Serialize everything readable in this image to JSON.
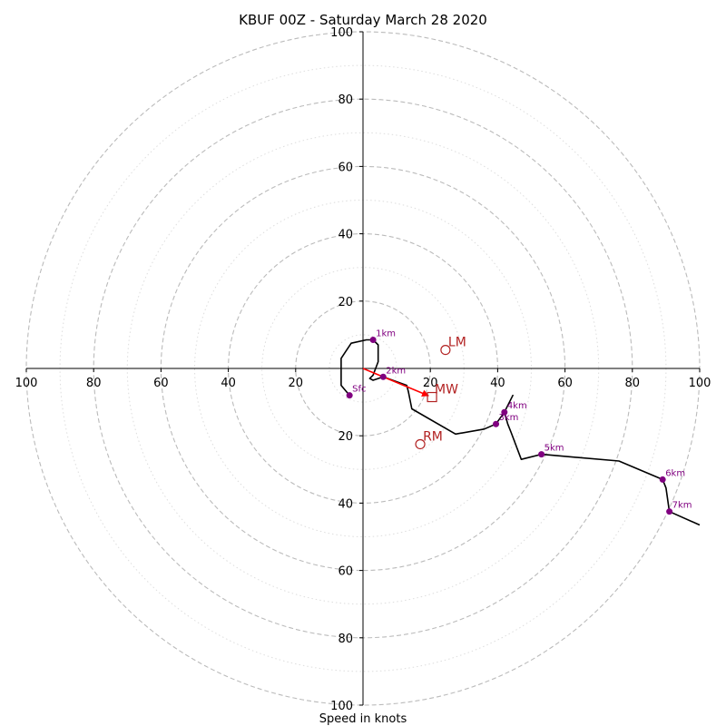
{
  "chart_data": {
    "type": "hodograph",
    "title": "KBUF 00Z - Saturday March 28 2020",
    "xlabel": "Speed in knots",
    "units": "knots",
    "range": [
      -100,
      100
    ],
    "rings_major": [
      20,
      40,
      60,
      80,
      100
    ],
    "rings_minor": [
      10,
      30,
      50,
      70,
      90
    ],
    "tick_labels_x": [
      "100",
      "80",
      "60",
      "40",
      "20",
      "20",
      "40",
      "60",
      "80",
      "100"
    ],
    "tick_values_x": [
      -100,
      -80,
      -60,
      -40,
      -20,
      20,
      40,
      60,
      80,
      100
    ],
    "tick_labels_y": [
      "100",
      "80",
      "60",
      "40",
      "20",
      "20",
      "40",
      "60",
      "80",
      "100"
    ],
    "tick_values_y": [
      100,
      80,
      60,
      40,
      20,
      -20,
      -40,
      -60,
      -80,
      -100
    ],
    "hodograph_trace": [
      [
        -4,
        -8
      ],
      [
        -6.5,
        -5
      ],
      [
        -6.5,
        3
      ],
      [
        -3.5,
        7.5
      ],
      [
        1,
        8.5
      ],
      [
        3,
        8.5
      ],
      [
        4.5,
        7
      ],
      [
        4.5,
        2
      ],
      [
        3,
        -2
      ],
      [
        2,
        -3
      ],
      [
        3,
        -3.5
      ],
      [
        6,
        -2.5
      ],
      [
        13,
        -5
      ],
      [
        13.5,
        -7
      ],
      [
        14.5,
        -12
      ],
      [
        27.5,
        -19.5
      ],
      [
        36,
        -18
      ],
      [
        39.5,
        -16.5
      ],
      [
        42,
        -13
      ],
      [
        44.5,
        -8
      ],
      [
        42,
        -13
      ],
      [
        43,
        -16.5
      ],
      [
        44,
        -19
      ],
      [
        47,
        -27
      ],
      [
        53,
        -25.5
      ],
      [
        76,
        -27.5
      ],
      [
        89,
        -33
      ],
      [
        90,
        -35.5
      ],
      [
        91,
        -42.5
      ],
      [
        100,
        -46.5
      ]
    ],
    "height_markers": [
      {
        "label": "Sfc",
        "u": -4,
        "v": -8
      },
      {
        "label": "1km",
        "u": 3,
        "v": 8.5
      },
      {
        "label": "2km",
        "u": 6,
        "v": -2.5
      },
      {
        "label": "3km",
        "u": 39.5,
        "v": -16.5
      },
      {
        "label": "4km",
        "u": 42,
        "v": -13
      },
      {
        "label": "5km",
        "u": 53,
        "v": -25.5
      },
      {
        "label": "6km",
        "u": 89,
        "v": -33
      },
      {
        "label": "7km",
        "u": 91,
        "v": -42.5
      }
    ],
    "storm_markers": [
      {
        "label": "LM",
        "u": 24.5,
        "v": 5.5,
        "shape": "circle"
      },
      {
        "label": "MW",
        "u": 20.5,
        "v": -8.5,
        "shape": "square"
      },
      {
        "label": "RM",
        "u": 17,
        "v": -22.5,
        "shape": "circle"
      }
    ],
    "mean_wind_vector": {
      "u": 20.5,
      "v": -8.5
    },
    "colors": {
      "trace": "#000000",
      "height_marker": "#800080",
      "storm_marker": "#b22222",
      "vector": "#ff0000",
      "ring_major": "#bbbbbb",
      "ring_minor": "#dddddd"
    }
  }
}
